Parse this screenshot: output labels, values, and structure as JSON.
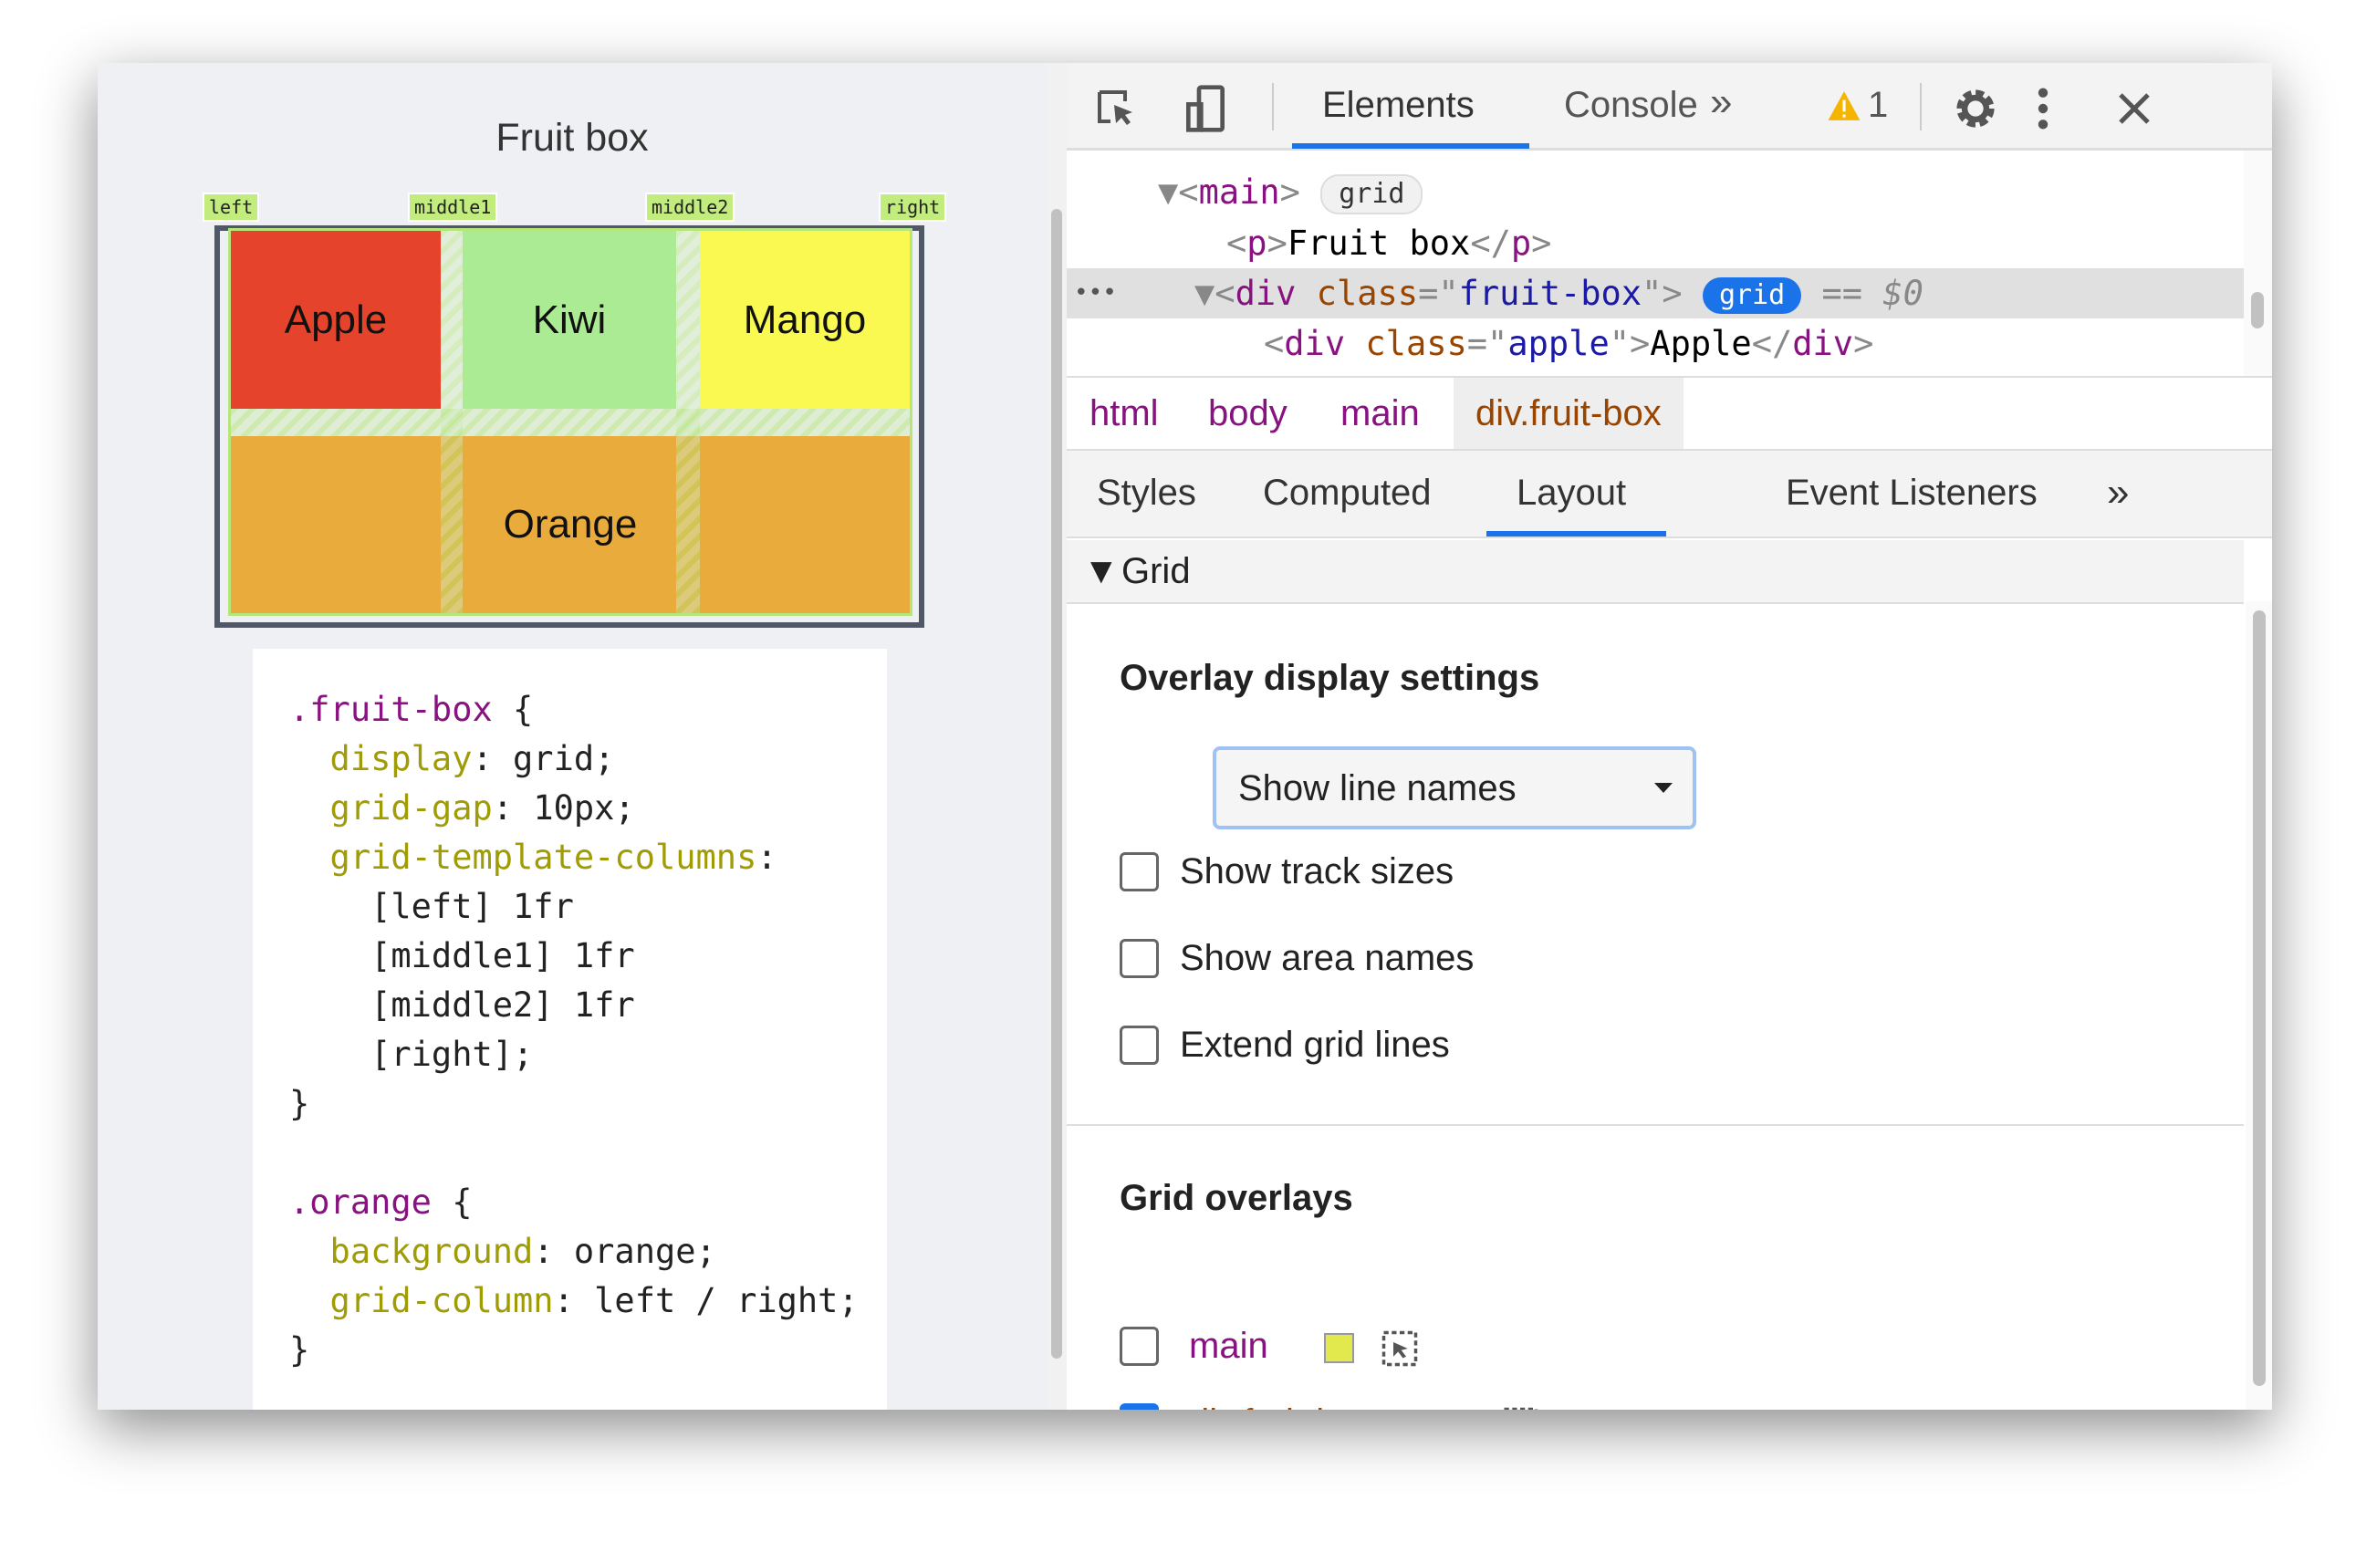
{
  "page": {
    "title": "Fruit box",
    "grid_labels": [
      "left",
      "middle1",
      "middle2",
      "right"
    ],
    "cells": {
      "apple": "Apple",
      "kiwi": "Kiwi",
      "mango": "Mango",
      "orange": "Orange"
    },
    "colors": {
      "apple": "#e5432b",
      "kiwi": "#aaeb93",
      "mango": "#f9f951",
      "orange": "#eaab3d",
      "overlay": "#b4e67a"
    },
    "code": [
      [
        {
          "t": ".fruit-box",
          "c": "sel"
        },
        {
          "t": " {"
        }
      ],
      [
        {
          "t": "  display",
          "c": "prop"
        },
        {
          "t": ": grid;"
        }
      ],
      [
        {
          "t": "  grid-gap",
          "c": "prop"
        },
        {
          "t": ": 10px;"
        }
      ],
      [
        {
          "t": "  grid-template-columns",
          "c": "prop"
        },
        {
          "t": ":"
        }
      ],
      [
        {
          "t": "    [left] 1fr"
        }
      ],
      [
        {
          "t": "    [middle1] 1fr"
        }
      ],
      [
        {
          "t": "    [middle2] 1fr"
        }
      ],
      [
        {
          "t": "    [right];"
        }
      ],
      [
        {
          "t": "}"
        }
      ],
      [
        {
          "t": ""
        }
      ],
      [
        {
          "t": ".orange",
          "c": "sel"
        },
        {
          "t": " {"
        }
      ],
      [
        {
          "t": "  background",
          "c": "prop"
        },
        {
          "t": ": orange;"
        }
      ],
      [
        {
          "t": "  grid-column",
          "c": "prop"
        },
        {
          "t": ": left / right;"
        }
      ],
      [
        {
          "t": "}"
        }
      ]
    ]
  },
  "devtools": {
    "tabs": {
      "elements": "Elements",
      "console": "Console"
    },
    "more": "»",
    "warning_count": "1",
    "dom": {
      "main": "main",
      "grid_badge": "grid",
      "p_text": "Fruit box",
      "div": "div",
      "class_attr": "class",
      "fruit_box": "fruit-box",
      "selected_marker": "== $0",
      "apple_class": "apple",
      "apple_text": "Apple",
      "ellipsis": "•••"
    },
    "breadcrumb": [
      "html",
      "body",
      "main",
      "div.fruit-box"
    ],
    "subtabs": [
      "Styles",
      "Computed",
      "Layout",
      "Event Listeners"
    ],
    "section": "Grid",
    "overlay_settings": "Overlay display settings",
    "select_value": "Show line names",
    "checkboxes": [
      {
        "label": "Show track sizes",
        "checked": false
      },
      {
        "label": "Show area names",
        "checked": false
      },
      {
        "label": "Extend grid lines",
        "checked": false
      }
    ],
    "grid_overlays": "Grid overlays",
    "overlays": [
      {
        "label": "main",
        "checked": false,
        "color": "#e2e94c"
      },
      {
        "label": "div.fruit-box",
        "checked": true,
        "color": "#b4e67a"
      }
    ],
    "accent": "#1a73e8"
  }
}
